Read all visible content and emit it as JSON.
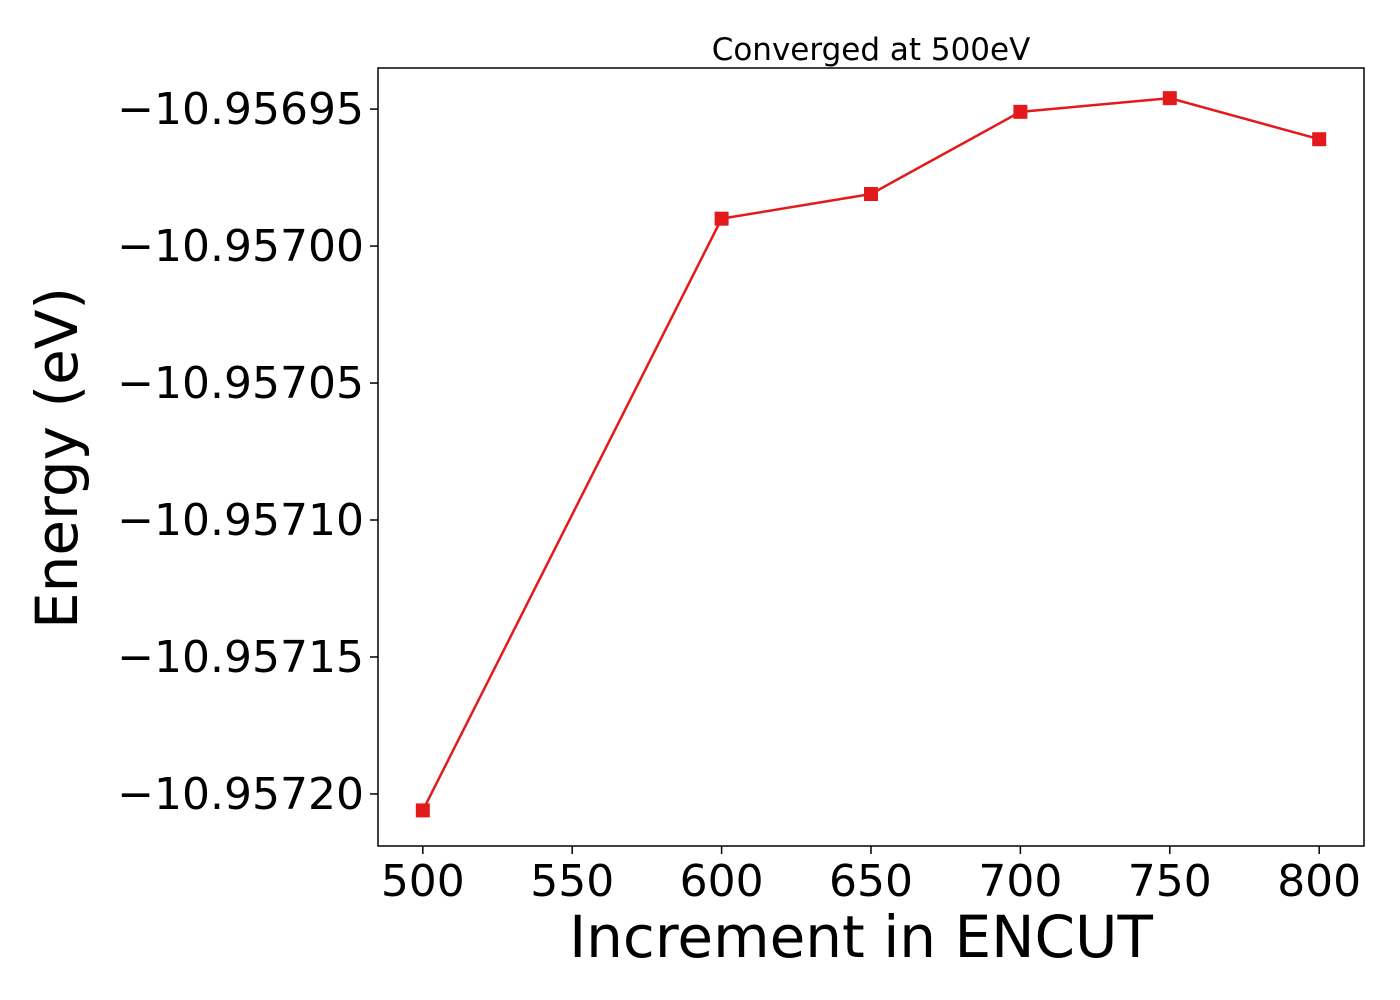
{
  "chart_data": {
    "type": "line",
    "title": "Converged at 500eV",
    "xlabel": "Increment in ENCUT",
    "ylabel": "Energy (eV)",
    "x": [
      500,
      600,
      650,
      700,
      750,
      800
    ],
    "series": [
      {
        "values": [
          -10.957206,
          -10.95699,
          -10.956981,
          -10.956951,
          -10.956946,
          -10.956961
        ],
        "color": "#e31a1c",
        "marker": "square"
      }
    ],
    "xticks": [
      500,
      550,
      600,
      650,
      700,
      750,
      800
    ],
    "xtick_labels": [
      "500",
      "550",
      "600",
      "650",
      "700",
      "750",
      "800"
    ],
    "yticks": [
      -10.95695,
      -10.957,
      -10.95705,
      -10.9571,
      -10.95715,
      -10.9572
    ],
    "ytick_labels": [
      "−10.95695",
      "−10.95700",
      "−10.95705",
      "−10.95710",
      "−10.95715",
      "−10.95720"
    ],
    "xlim": [
      485,
      815
    ],
    "ylim": [
      -10.957219,
      -10.956935
    ],
    "grid": false,
    "legend": "none"
  }
}
